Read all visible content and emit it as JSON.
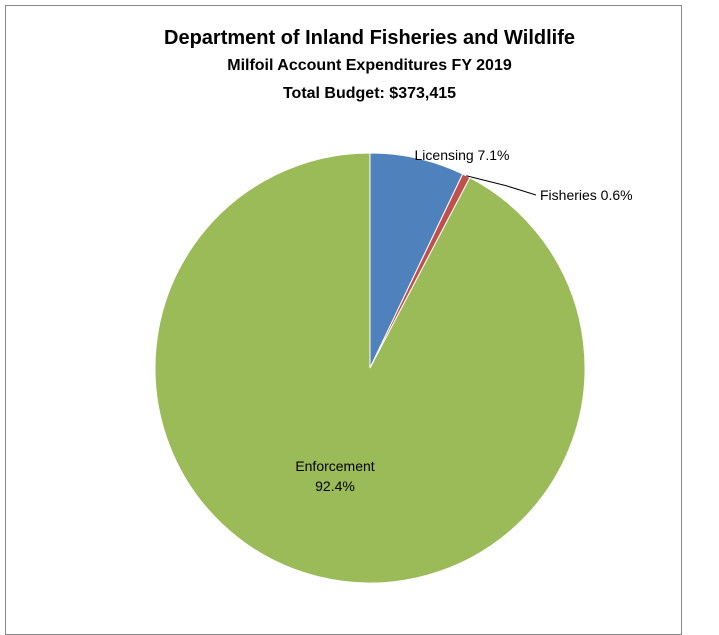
{
  "chart_data": {
    "type": "pie",
    "title": "Department of Inland Fisheries and Wildlife",
    "subtitle": "Milfoil Account Expenditures FY 2019",
    "subtitle2": "Total Budget:  $373,415",
    "slices": [
      {
        "label": "Licensing",
        "percent_label": "7.1%",
        "value": 7.1,
        "color": "#4f81bd"
      },
      {
        "label": "Fisheries",
        "percent_label": "0.6%",
        "value": 0.6,
        "color": "#c0504d"
      },
      {
        "label": "Enforcement",
        "percent_label": "92.4%",
        "value": 92.4,
        "color": "#9bbb59"
      }
    ]
  }
}
